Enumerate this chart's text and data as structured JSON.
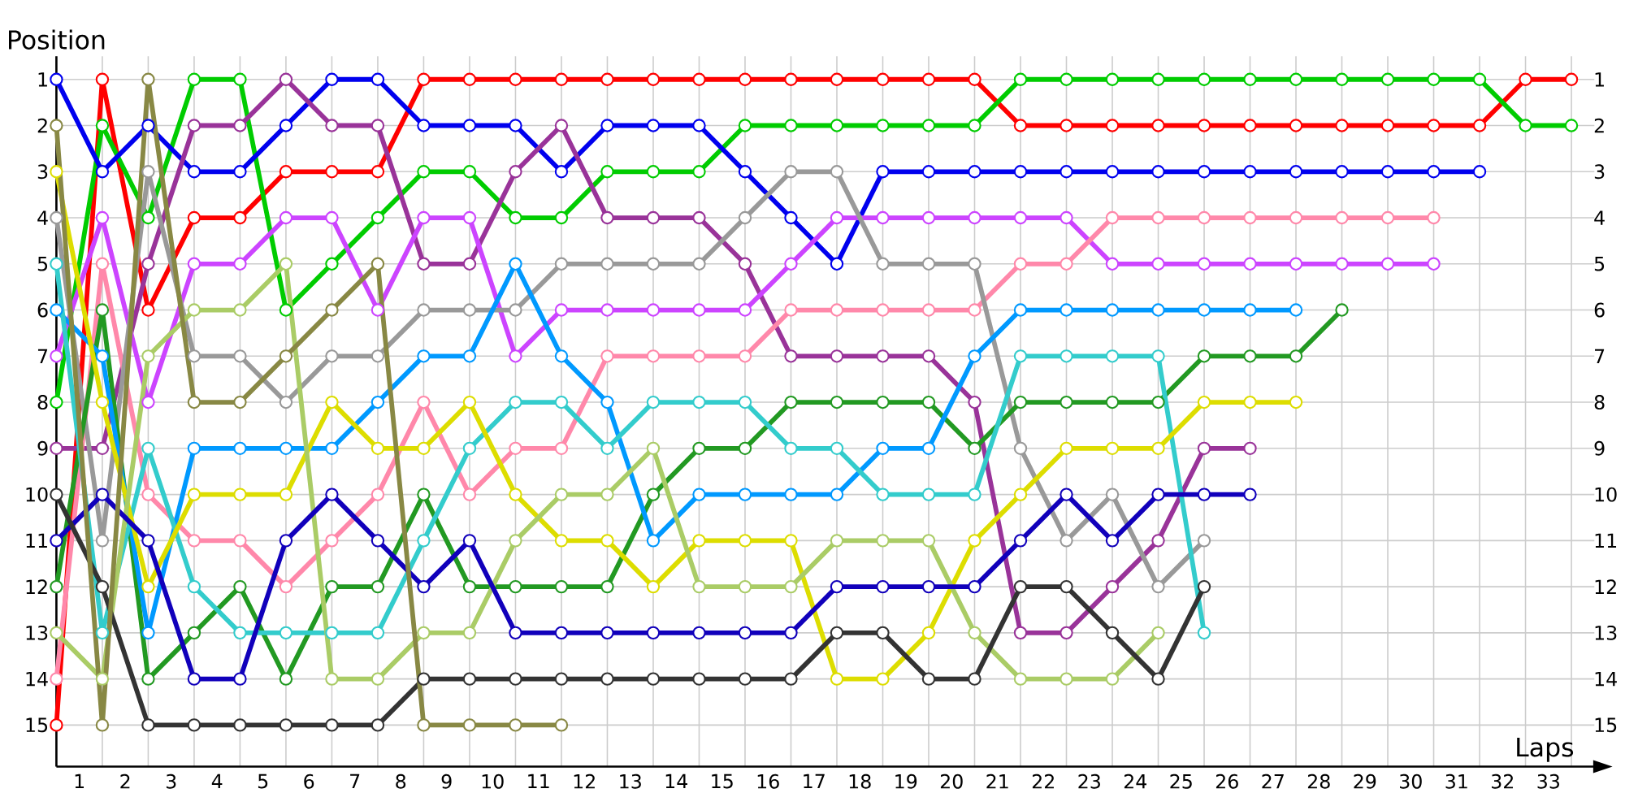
{
  "chart_data": {
    "type": "line",
    "xlabel": "Laps",
    "ylabel": "Position",
    "marker": "circle",
    "line_style": "solid",
    "grid": true,
    "x": [
      0,
      1,
      2,
      3,
      4,
      5,
      6,
      7,
      8,
      9,
      10,
      11,
      12,
      13,
      14,
      15,
      16,
      17,
      18,
      19,
      20,
      21,
      22,
      23,
      24,
      25,
      26,
      27,
      28,
      29,
      30,
      31,
      32,
      33
    ],
    "xlim": [
      0,
      33.5
    ],
    "xticks": [
      {
        "value": 0.5,
        "label": "1"
      },
      {
        "value": 1.5,
        "label": "2"
      },
      {
        "value": 2.5,
        "label": "3"
      },
      {
        "value": 3.5,
        "label": "4"
      },
      {
        "value": 4.5,
        "label": "5"
      },
      {
        "value": 5.5,
        "label": "6"
      },
      {
        "value": 6.5,
        "label": "7"
      },
      {
        "value": 7.5,
        "label": "8"
      },
      {
        "value": 8.5,
        "label": "9"
      },
      {
        "value": 9.5,
        "label": "10"
      },
      {
        "value": 10.5,
        "label": "11"
      },
      {
        "value": 11.5,
        "label": "12"
      },
      {
        "value": 12.5,
        "label": "13"
      },
      {
        "value": 13.5,
        "label": "14"
      },
      {
        "value": 14.5,
        "label": "15"
      },
      {
        "value": 15.5,
        "label": "16"
      },
      {
        "value": 16.5,
        "label": "17"
      },
      {
        "value": 17.5,
        "label": "18"
      },
      {
        "value": 18.5,
        "label": "19"
      },
      {
        "value": 19.5,
        "label": "20"
      },
      {
        "value": 20.5,
        "label": "21"
      },
      {
        "value": 21.5,
        "label": "22"
      },
      {
        "value": 22.5,
        "label": "23"
      },
      {
        "value": 23.5,
        "label": "24"
      },
      {
        "value": 24.5,
        "label": "25"
      },
      {
        "value": 25.5,
        "label": "26"
      },
      {
        "value": 26.5,
        "label": "27"
      },
      {
        "value": 27.5,
        "label": "28"
      },
      {
        "value": 28.5,
        "label": "29"
      },
      {
        "value": 29.5,
        "label": "30"
      },
      {
        "value": 30.5,
        "label": "31"
      },
      {
        "value": 31.5,
        "label": "32"
      },
      {
        "value": 32.5,
        "label": "33"
      }
    ],
    "ylim": [
      15.9,
      0.5
    ],
    "yticks": [
      1,
      2,
      3,
      4,
      5,
      6,
      7,
      8,
      9,
      10,
      11,
      12,
      13,
      14,
      15
    ],
    "y2lim": [
      15.9,
      0.5
    ],
    "y2ticks": [
      1,
      2,
      3,
      4,
      5,
      6,
      7,
      8,
      9,
      10,
      11,
      12,
      13,
      14,
      15
    ],
    "series": [
      {
        "color": "#ff0000",
        "values": [
          15,
          1,
          6,
          4,
          4,
          3,
          3,
          3,
          1,
          1,
          1,
          1,
          1,
          1,
          1,
          1,
          1,
          1,
          1,
          1,
          1,
          2,
          2,
          2,
          2,
          2,
          2,
          2,
          2,
          2,
          2,
          2,
          1,
          1
        ]
      },
      {
        "color": "#00cc00",
        "values": [
          8,
          2,
          4,
          1,
          1,
          6,
          5,
          4,
          3,
          3,
          4,
          4,
          3,
          3,
          3,
          2,
          2,
          2,
          2,
          2,
          2,
          1,
          1,
          1,
          1,
          1,
          1,
          1,
          1,
          1,
          1,
          1,
          2,
          2
        ]
      },
      {
        "color": "#0000ee",
        "values": [
          1,
          3,
          2,
          3,
          3,
          2,
          1,
          1,
          2,
          2,
          2,
          3,
          2,
          2,
          2,
          3,
          4,
          5,
          3,
          3,
          3,
          3,
          3,
          3,
          3,
          3,
          3,
          3,
          3,
          3,
          3,
          3,
          null,
          null
        ]
      },
      {
        "color": "#993399",
        "values": [
          9,
          9,
          5,
          2,
          2,
          1,
          2,
          2,
          5,
          5,
          3,
          2,
          4,
          4,
          4,
          5,
          7,
          7,
          7,
          7,
          8,
          13,
          13,
          12,
          11,
          9,
          9,
          null,
          null,
          null,
          null,
          null,
          null,
          null
        ]
      },
      {
        "color": "#cc44ff",
        "values": [
          7,
          4,
          8,
          5,
          5,
          4,
          4,
          6,
          4,
          4,
          7,
          6,
          6,
          6,
          6,
          6,
          5,
          4,
          4,
          4,
          4,
          4,
          4,
          5,
          5,
          5,
          5,
          5,
          5,
          5,
          5,
          null,
          null,
          null
        ]
      },
      {
        "color": "#ff88aa",
        "values": [
          14,
          5,
          10,
          11,
          11,
          12,
          11,
          10,
          8,
          10,
          9,
          9,
          7,
          7,
          7,
          7,
          6,
          6,
          6,
          6,
          6,
          5,
          5,
          4,
          4,
          4,
          4,
          4,
          4,
          4,
          4,
          null,
          null,
          null
        ]
      },
      {
        "color": "#999999",
        "values": [
          4,
          11,
          3,
          7,
          7,
          8,
          7,
          7,
          6,
          6,
          6,
          5,
          5,
          5,
          5,
          4,
          3,
          3,
          5,
          5,
          5,
          9,
          11,
          10,
          12,
          11,
          null,
          null,
          null,
          null,
          null,
          null,
          null,
          null
        ]
      },
      {
        "color": "#229922",
        "values": [
          12,
          6,
          14,
          13,
          12,
          14,
          12,
          12,
          10,
          12,
          12,
          12,
          12,
          10,
          9,
          9,
          8,
          8,
          8,
          8,
          9,
          8,
          8,
          8,
          8,
          7,
          7,
          7,
          6,
          null,
          null,
          null,
          null,
          null
        ]
      },
      {
        "color": "#0099ff",
        "values": [
          6,
          7,
          13,
          9,
          9,
          9,
          9,
          8,
          7,
          7,
          5,
          7,
          8,
          11,
          10,
          10,
          10,
          10,
          9,
          9,
          7,
          6,
          6,
          6,
          6,
          6,
          6,
          6,
          null,
          null,
          null,
          null,
          null,
          null
        ]
      },
      {
        "color": "#33cccc",
        "values": [
          5,
          13,
          9,
          12,
          13,
          13,
          13,
          13,
          11,
          9,
          8,
          8,
          9,
          8,
          8,
          8,
          9,
          9,
          10,
          10,
          10,
          7,
          7,
          7,
          7,
          13,
          null,
          null,
          null,
          null,
          null,
          null,
          null,
          null
        ]
      },
      {
        "color": "#dddd00",
        "values": [
          3,
          8,
          12,
          10,
          10,
          10,
          8,
          9,
          9,
          8,
          10,
          11,
          11,
          12,
          11,
          11,
          11,
          14,
          14,
          13,
          11,
          10,
          9,
          9,
          9,
          8,
          8,
          8,
          null,
          null,
          null,
          null,
          null,
          null
        ]
      },
      {
        "color": "#aacc66",
        "values": [
          13,
          14,
          7,
          6,
          6,
          5,
          14,
          14,
          13,
          13,
          11,
          10,
          10,
          9,
          12,
          12,
          12,
          11,
          11,
          11,
          13,
          14,
          14,
          14,
          13,
          null,
          null,
          null,
          null,
          null,
          null,
          null,
          null,
          null
        ]
      },
      {
        "color": "#1100bb",
        "values": [
          11,
          10,
          11,
          14,
          14,
          11,
          10,
          11,
          12,
          11,
          13,
          13,
          13,
          13,
          13,
          13,
          13,
          12,
          12,
          12,
          12,
          11,
          10,
          11,
          10,
          10,
          10,
          null,
          null,
          null,
          null,
          null,
          null,
          null
        ]
      },
      {
        "color": "#333333",
        "values": [
          10,
          12,
          15,
          15,
          15,
          15,
          15,
          15,
          14,
          14,
          14,
          14,
          14,
          14,
          14,
          14,
          14,
          13,
          13,
          14,
          14,
          12,
          12,
          13,
          14,
          12,
          null,
          null,
          null,
          null,
          null,
          null,
          null,
          null
        ]
      },
      {
        "color": "#888844",
        "values": [
          2,
          15,
          1,
          8,
          8,
          7,
          6,
          5,
          15,
          15,
          15,
          15,
          null,
          null,
          null,
          null,
          null,
          null,
          null,
          null,
          null,
          null,
          null,
          null,
          null,
          null,
          null,
          null,
          null,
          null,
          null,
          null,
          null,
          null
        ]
      }
    ]
  }
}
